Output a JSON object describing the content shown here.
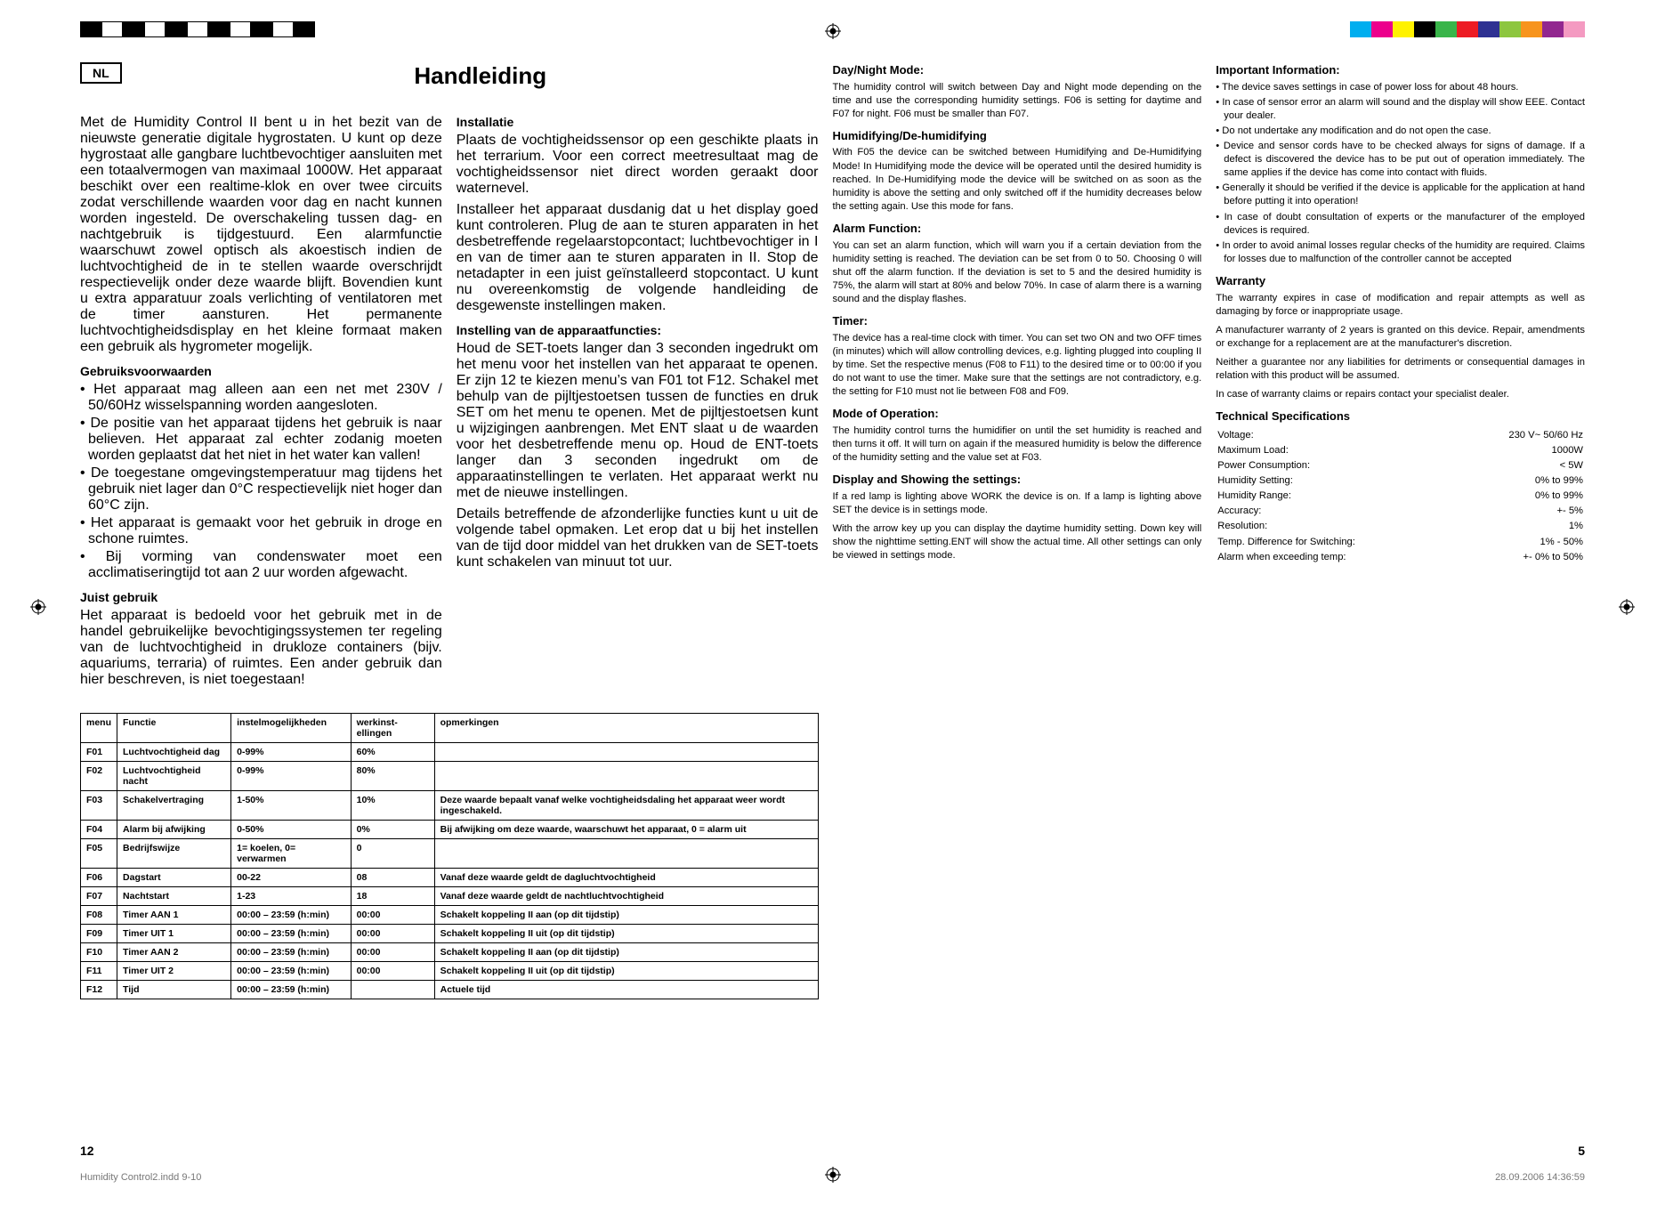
{
  "color_swatches_left": [
    "#000000",
    "#ffffff",
    "#000000",
    "#ffffff",
    "#000000",
    "#ffffff",
    "#000000",
    "#ffffff",
    "#000000",
    "#ffffff",
    "#000000"
  ],
  "color_swatches_right": [
    "#00aeef",
    "#ec008c",
    "#fff200",
    "#000000",
    "#39b54a",
    "#ed1c24",
    "#2e3192",
    "#8dc63f",
    "#f7941d",
    "#92278f",
    "#f49ac1"
  ],
  "lang_code": "NL",
  "main_title": "Handleiding",
  "nl_intro": "Met de Humidity Control II bent u in het bezit van de nieuwste generatie digitale hygrostaten. U kunt op deze hygrostaat alle gangbare luchtbevochtiger aansluiten met een totaalvermogen van maximaal 1000W. Het apparaat beschikt over een realtime-klok en over twee circuits zodat verschillende waarden voor dag en nacht kunnen worden ingesteld. De overschakeling tussen dag- en nachtgebruik is tijdgestuurd. Een alarmfunctie waarschuwt zowel optisch als akoestisch indien de luchtvochtigheid de in te stellen waarde overschrijdt respectievelijk onder deze waarde blijft. Bovendien kunt u extra apparatuur zoals verlichting of ventilatoren met de timer aansturen. Het permanente luchtvochtigheidsdisplay en het kleine formaat maken een gebruik als hygrometer mogelijk.",
  "h_gebruik": "Gebruiksvoorwaarden",
  "gebruik_items": [
    "Het apparaat mag alleen aan een net met 230V / 50/60Hz wisselspanning worden aangesloten.",
    "De positie van het apparaat tijdens het gebruik is naar believen. Het apparaat zal echter zodanig moeten worden geplaatst dat het niet in het water kan vallen!",
    "De toegestane omgevingstemperatuur mag tijdens het gebruik niet lager dan 0°C respectievelijk niet hoger dan 60°C zijn.",
    "Het apparaat is gemaakt voor het gebruik in droge en schone ruimtes.",
    "Bij vorming van condenswater moet een acclimatiseringtijd tot aan 2 uur worden afgewacht."
  ],
  "h_juist": "Juist gebruik",
  "juist_p": "Het apparaat is bedoeld voor het gebruik met in de handel gebruikelijke bevochtigingssystemen ter regeling van de luchtvochtigheid in drukloze containers (bijv. aquariums, terraria) of ruimtes. Een ander gebruik dan hier beschreven, is niet toegestaan!",
  "h_install": "Installatie",
  "install_p1": "Plaats de vochtigheidssensor op een geschikte plaats in het terrarium. Voor een correct meetresultaat mag de vochtigheidssensor niet direct worden geraakt door waternevel.",
  "install_p2": "Installeer het apparaat dusdanig dat u het display goed kunt controleren. Plug de aan te sturen apparaten in het desbetreffende regelaarstopcontact; luchtbevochtiger in I en van de timer aan te sturen apparaten in II. Stop de netadapter in een juist geïnstalleerd stopcontact. U kunt nu overeenkomstig de volgende handleiding de desgewenste instellingen maken.",
  "h_instel": "Instelling van de apparaatfuncties:",
  "instel_p1": "Houd de SET-toets langer dan 3 seconden ingedrukt om het menu voor het instellen van het apparaat te openen. Er zijn 12 te kiezen menu’s van F01 tot F12. Schakel met behulp van de pijltjestoetsen tussen de functies en druk SET om het menu te openen. Met de pijltjestoetsen kunt u wijzigingen aanbrengen. Met ENT slaat u de waarden voor het desbetreffende menu op. Houd de ENT-toets langer dan 3 seconden ingedrukt om de apparaatinstellingen te verlaten. Het apparaat werkt nu met de nieuwe instellingen.",
  "instel_p2": "Details betreffende de afzonderlijke functies kunt u uit de volgende tabel opmaken. Let erop dat u bij het instellen van de tijd door middel van het drukken van de SET-toets kunt schakelen van minuut tot uur.",
  "table": {
    "headers": [
      "menu",
      "Functie",
      "instelmogelijkheden",
      "werkinst-ellingen",
      "opmerkingen"
    ],
    "rows": [
      [
        "F01",
        "Luchtvochtigheid dag",
        "0-99%",
        "60%",
        ""
      ],
      [
        "F02",
        "Luchtvochtigheid nacht",
        "0-99%",
        "80%",
        ""
      ],
      [
        "F03",
        "Schakelvertraging",
        "1-50%",
        "10%",
        "Deze waarde bepaalt vanaf welke vochtigheidsdaling het apparaat weer wordt ingeschakeld."
      ],
      [
        "F04",
        "Alarm bij afwijking",
        "0-50%",
        "0%",
        "Bij afwijking om deze waarde, waarschuwt het apparaat, 0 = alarm uit"
      ],
      [
        "F05",
        "Bedrijfswijze",
        "1= koelen, 0= verwarmen",
        "0",
        ""
      ],
      [
        "F06",
        "Dagstart",
        "00-22",
        "08",
        "Vanaf deze waarde geldt de dagluchtvochtigheid"
      ],
      [
        "F07",
        "Nachtstart",
        "1-23",
        "18",
        "Vanaf deze waarde geldt de nachtluchtvochtigheid"
      ],
      [
        "F08",
        "Timer AAN 1",
        "00:00 – 23:59 (h:min)",
        "00:00",
        "Schakelt koppeling II aan (op dit tijdstip)"
      ],
      [
        "F09",
        "Timer UIT 1",
        "00:00 – 23:59 (h:min)",
        "00:00",
        "Schakelt koppeling II uit (op dit tijdstip)"
      ],
      [
        "F10",
        "Timer AAN 2",
        "00:00 – 23:59 (h:min)",
        "00:00",
        "Schakelt koppeling II aan (op dit tijdstip)"
      ],
      [
        "F11",
        "Timer UIT 2",
        "00:00 – 23:59 (h:min)",
        "00:00",
        "Schakelt koppeling II uit (op dit tijdstip)"
      ],
      [
        "F12",
        "Tijd",
        "00:00 – 23:59 (h:min)",
        "",
        "Actuele tijd"
      ]
    ]
  },
  "en": {
    "h_day": "Day/Night Mode:",
    "day_p": "The humidity control will switch between Day and Night mode depending on the time and use the corresponding humidity settings. F06 is setting for daytime and F07 for night. F06 must be smaller than F07.",
    "h_hum": "Humidifying/De-humidifying",
    "hum_p": "With F05 the device can be switched between Humidifying and De-Humidifying Mode! In Humidifying mode the device will be operated until the desired humidity is reached. In De-Humidifying mode the device will be switched on as soon as the humidity is above the setting and only switched off if the humidity decreases below the setting again. Use this mode for fans.",
    "h_alarm": "Alarm Function:",
    "alarm_p": "You can set an alarm function, which will warn you if a certain deviation from the humidity setting is reached. The deviation can be set from 0 to 50. Choosing 0 will shut off the alarm function. If the deviation is set to 5 and the desired humidity is 75%, the alarm will start at 80% and below 70%. In case of alarm there is a warning sound and the display flashes.",
    "h_timer": "Timer:",
    "timer_p": "The device has a real-time clock with timer. You can set two ON and two OFF times (in minutes) which will allow controlling devices, e.g. lighting plugged into coupling II by time. Set the respective menus (F08 to F11) to the desired time or to 00:00 if you do not want to use the timer. Make sure that the settings are not contradictory, e.g. the setting for F10 must not lie between F08 and F09.",
    "h_mode": "Mode of Operation:",
    "mode_p": "The humidity control turns the humidifier on until the set humidity is reached and then turns it off. It will turn on again if the measured humidity is below the difference of the humidity setting and the value set at F03.",
    "h_disp": "Display and Showing the settings:",
    "disp_p1": "If a red lamp is lighting above WORK the device is on. If a lamp is lighting above SET the device is in settings mode.",
    "disp_p2": "With the arrow key up you can display the daytime humidity setting. Down key will show the nighttime setting.ENT will show the actual time. All other settings can only be viewed in settings mode.",
    "h_imp": "Important Information:",
    "imp_items": [
      "The device saves settings in case of power loss for about 48 hours.",
      "In case of sensor error an alarm will sound and the display will show EEE. Contact your dealer.",
      "Do not undertake any modification and do not open the case.",
      "Device and sensor cords have to be checked always for signs of damage. If a defect is discovered the device has to be put out of operation immediately. The same applies if the device has come into contact with fluids.",
      "Generally it should be verified if the device is applicable for the application at hand before putting it into operation!",
      "In case of doubt consultation of experts or the manufacturer of the employed devices is required.",
      "In order to avoid animal losses regular checks of the humidity are required. Claims for losses due to malfunction of the controller cannot be accepted"
    ],
    "h_warr": "Warranty",
    "warr_p1": "The warranty expires in case of modification and repair attempts as well as damaging by force or inappropriate usage.",
    "warr_p2": "A manufacturer warranty of 2 years is granted on this device. Repair, amendments or exchange for a replacement are at the manufacturer's discretion.",
    "warr_p3": "Neither a guarantee nor any liabilities for detriments or consequential damages in relation with this product will be assumed.",
    "warr_p4": "In case of warranty claims or repairs contact your specialist dealer.",
    "h_spec": "Technical Specifications",
    "specs": [
      [
        "Voltage:",
        "230 V~ 50/60 Hz"
      ],
      [
        "Maximum Load:",
        "1000W"
      ],
      [
        "Power Consumption:",
        "< 5W"
      ],
      [
        "Humidity Setting:",
        "0% to 99%"
      ],
      [
        "Humidity Range:",
        "0% to 99%"
      ],
      [
        "Accuracy:",
        "+- 5%"
      ],
      [
        "Resolution:",
        "1%"
      ],
      [
        "Temp. Difference for Switching:",
        "1% - 50%"
      ],
      [
        "Alarm when exceeding temp:",
        "+- 0% to 50%"
      ]
    ]
  },
  "page_left": "12",
  "page_right": "5",
  "footer_left": "Humidity Control2.indd   9-10",
  "footer_right": "28.09.2006   14:36:59"
}
